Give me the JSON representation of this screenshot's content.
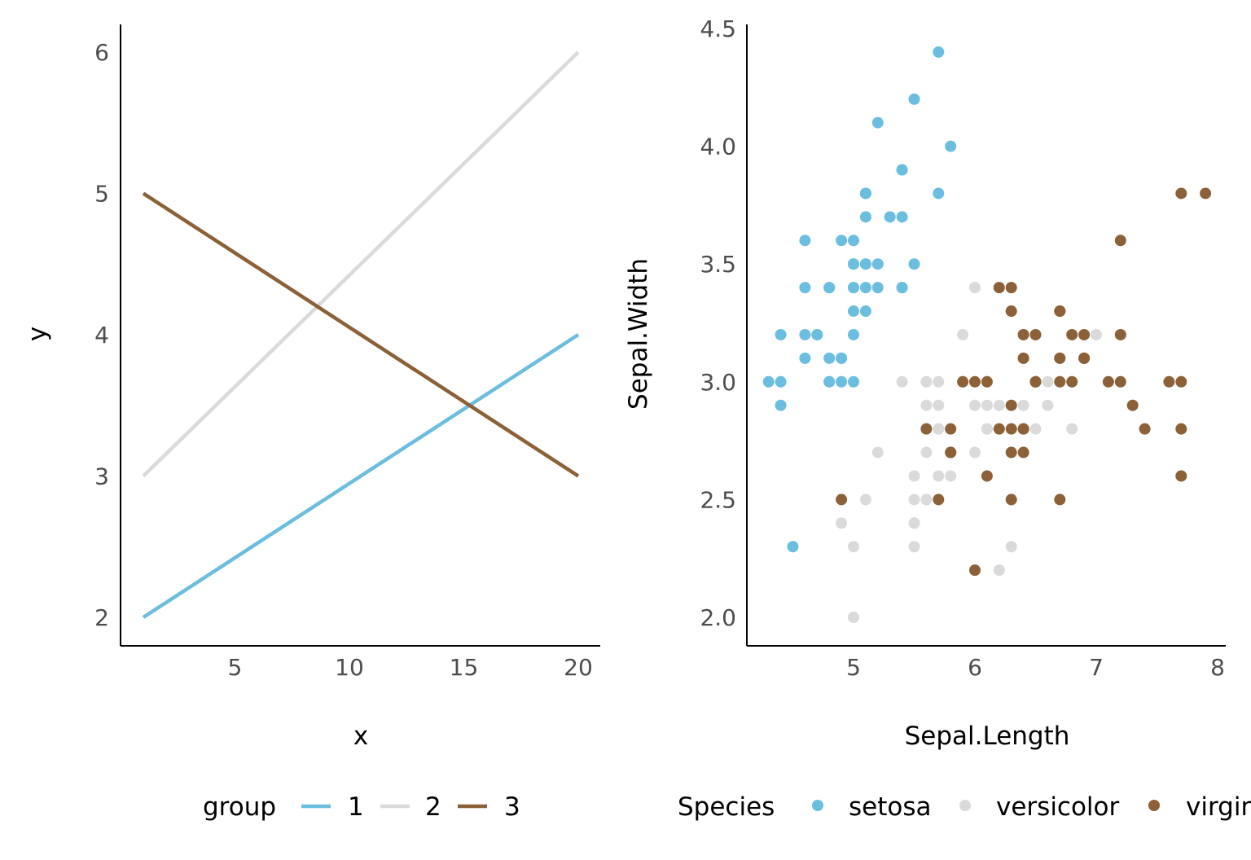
{
  "chart_data": [
    {
      "type": "line",
      "xlabel": "x",
      "ylabel": "y",
      "xlim": [
        1,
        20
      ],
      "ylim": [
        2,
        6
      ],
      "x_ticks": [
        "5",
        "10",
        "15",
        "20"
      ],
      "y_ticks": [
        "2",
        "3",
        "4",
        "5",
        "6"
      ],
      "grid": false,
      "legend": {
        "title": "group",
        "position": "bottom",
        "entries": [
          "1",
          "2",
          "3"
        ]
      },
      "series": [
        {
          "name": "1",
          "color": "#6BBEDF",
          "x": [
            1,
            20
          ],
          "y": [
            2,
            4
          ]
        },
        {
          "name": "2",
          "color": "#DADADA",
          "x": [
            1,
            20
          ],
          "y": [
            3,
            6
          ]
        },
        {
          "name": "3",
          "color": "#8C6137",
          "x": [
            1,
            20
          ],
          "y": [
            5,
            3
          ]
        }
      ]
    },
    {
      "type": "scatter",
      "xlabel": "Sepal.Length",
      "ylabel": "Sepal.Width",
      "xlim": [
        4.3,
        7.9
      ],
      "ylim": [
        2.0,
        4.4
      ],
      "x_ticks": [
        "5",
        "6",
        "7",
        "8"
      ],
      "y_ticks": [
        "2.0",
        "2.5",
        "3.0",
        "3.5",
        "4.0",
        "4.5"
      ],
      "grid": false,
      "legend": {
        "title": "Species",
        "position": "bottom",
        "entries": [
          "setosa",
          "versicolor",
          "virginica"
        ]
      },
      "series": [
        {
          "name": "setosa",
          "color": "#6BBEDF",
          "x": [
            5.1,
            4.9,
            4.7,
            4.6,
            5.0,
            5.4,
            4.6,
            5.0,
            4.4,
            4.9,
            5.4,
            4.8,
            4.8,
            4.3,
            5.8,
            5.7,
            5.4,
            5.1,
            5.7,
            5.1,
            5.4,
            5.1,
            4.6,
            5.1,
            4.8,
            5.0,
            5.0,
            5.2,
            5.2,
            4.7,
            4.8,
            5.4,
            5.2,
            5.5,
            4.9,
            5.0,
            5.5,
            4.9,
            4.4,
            5.1,
            5.0,
            4.5,
            4.4,
            5.0,
            5.1,
            4.8,
            5.1,
            4.6,
            5.3,
            5.0
          ],
          "y": [
            3.5,
            3.0,
            3.2,
            3.1,
            3.6,
            3.9,
            3.4,
            3.4,
            2.9,
            3.1,
            3.7,
            3.4,
            3.0,
            3.0,
            4.0,
            4.4,
            3.9,
            3.5,
            3.8,
            3.8,
            3.4,
            3.7,
            3.6,
            3.3,
            3.4,
            3.0,
            3.4,
            3.5,
            3.4,
            3.2,
            3.1,
            3.4,
            4.1,
            4.2,
            3.1,
            3.2,
            3.5,
            3.6,
            3.0,
            3.4,
            3.5,
            2.3,
            3.2,
            3.5,
            3.8,
            3.0,
            3.8,
            3.2,
            3.7,
            3.3
          ]
        },
        {
          "name": "versicolor",
          "color": "#DADADA",
          "x": [
            7.0,
            6.4,
            6.9,
            5.5,
            6.5,
            5.7,
            6.3,
            4.9,
            6.6,
            5.2,
            5.0,
            5.9,
            6.0,
            6.1,
            5.6,
            6.7,
            5.6,
            5.8,
            6.2,
            5.6,
            5.9,
            6.1,
            6.3,
            6.1,
            6.4,
            6.6,
            6.8,
            6.7,
            6.0,
            5.7,
            5.5,
            5.5,
            5.8,
            6.0,
            5.4,
            6.0,
            6.7,
            6.3,
            5.6,
            5.5,
            5.5,
            6.1,
            5.8,
            5.0,
            5.6,
            5.7,
            5.7,
            6.2,
            5.1,
            5.7
          ],
          "y": [
            3.2,
            3.2,
            3.1,
            2.3,
            2.8,
            2.8,
            3.3,
            2.4,
            2.9,
            2.7,
            2.0,
            3.0,
            2.2,
            2.9,
            2.9,
            3.1,
            3.0,
            2.7,
            2.2,
            2.5,
            3.2,
            2.8,
            2.5,
            2.8,
            2.9,
            3.0,
            2.8,
            3.0,
            2.9,
            2.6,
            2.4,
            2.4,
            2.7,
            2.7,
            3.0,
            3.4,
            3.1,
            2.3,
            3.0,
            2.5,
            2.6,
            3.0,
            2.6,
            2.3,
            2.7,
            3.0,
            2.9,
            2.9,
            2.5,
            2.8
          ]
        },
        {
          "name": "virginica",
          "color": "#8C6137",
          "x": [
            6.3,
            5.8,
            7.1,
            6.3,
            6.5,
            7.6,
            4.9,
            7.3,
            6.7,
            7.2,
            6.5,
            6.4,
            6.8,
            5.7,
            5.8,
            6.4,
            6.5,
            7.7,
            7.7,
            6.0,
            6.9,
            5.6,
            7.7,
            6.3,
            6.7,
            7.2,
            6.2,
            6.1,
            6.4,
            7.2,
            7.4,
            7.9,
            6.4,
            6.3,
            6.1,
            7.7,
            6.3,
            6.4,
            6.0,
            6.9,
            6.7,
            6.9,
            5.8,
            6.8,
            6.7,
            6.7,
            6.3,
            6.5,
            6.2,
            5.9
          ],
          "y": [
            3.3,
            2.7,
            3.0,
            2.9,
            3.0,
            3.0,
            2.5,
            2.9,
            2.5,
            3.6,
            3.2,
            2.7,
            3.0,
            2.5,
            2.8,
            3.2,
            3.0,
            3.8,
            2.6,
            2.2,
            3.2,
            2.8,
            2.8,
            2.7,
            3.3,
            3.2,
            2.8,
            3.0,
            2.8,
            3.0,
            2.8,
            3.8,
            2.8,
            2.8,
            2.6,
            3.0,
            3.4,
            3.1,
            3.0,
            3.1,
            3.1,
            3.1,
            2.7,
            3.2,
            3.3,
            3.0,
            2.5,
            3.0,
            3.4,
            3.0
          ]
        }
      ]
    }
  ]
}
